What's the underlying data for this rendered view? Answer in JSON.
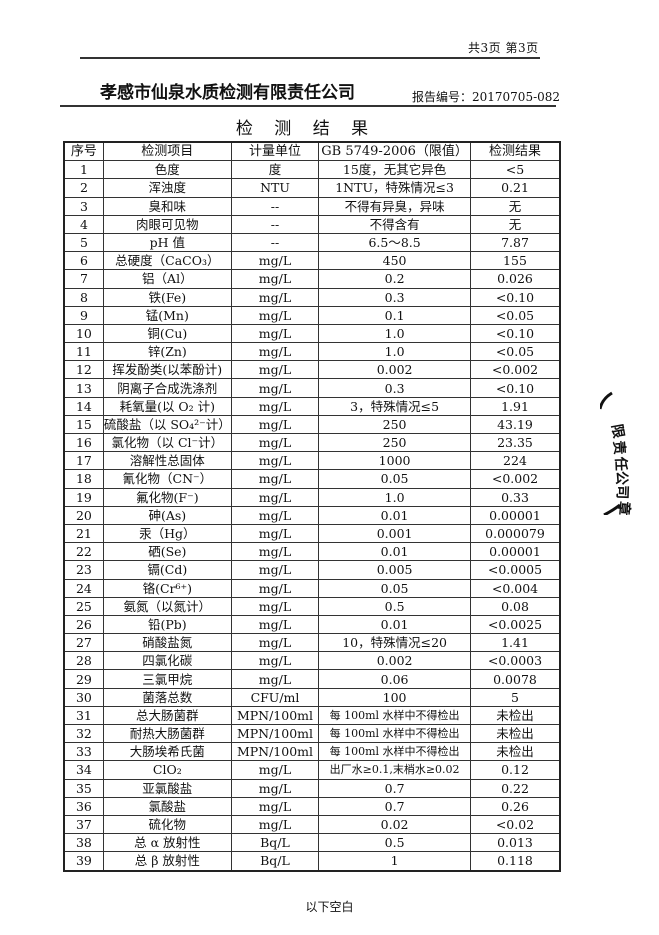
{
  "page_info": "共3页 第3页",
  "company": "孝感市仙泉水质检测有限责任公司",
  "report_no": "报告编号：20170705-082",
  "title": "检 测 结 果",
  "table": {
    "headers": [
      "序号",
      "检测项目",
      "计量单位",
      "GB 5749-2006（限值）",
      "检测结果"
    ],
    "rows": [
      [
        "1",
        "色度",
        "度",
        "15度，无其它异色",
        "<5"
      ],
      [
        "2",
        "浑浊度",
        "NTU",
        "1NTU，特殊情况≤3",
        "0.21"
      ],
      [
        "3",
        "臭和味",
        "--",
        "不得有异臭，异味",
        "无"
      ],
      [
        "4",
        "肉眼可见物",
        "--",
        "不得含有",
        "无"
      ],
      [
        "5",
        "pH 值",
        "--",
        "6.5～8.5",
        "7.87"
      ],
      [
        "6",
        "总硬度（CaCO₃）",
        "mg/L",
        "450",
        "155"
      ],
      [
        "7",
        "铝（Al）",
        "mg/L",
        "0.2",
        "0.026"
      ],
      [
        "8",
        "铁(Fe)",
        "mg/L",
        "0.3",
        "<0.10"
      ],
      [
        "9",
        "锰(Mn)",
        "mg/L",
        "0.1",
        "<0.05"
      ],
      [
        "10",
        "铜(Cu)",
        "mg/L",
        "1.0",
        "<0.10"
      ],
      [
        "11",
        "锌(Zn)",
        "mg/L",
        "1.0",
        "<0.05"
      ],
      [
        "12",
        "挥发酚类(以苯酚计)",
        "mg/L",
        "0.002",
        "<0.002"
      ],
      [
        "13",
        "阴离子合成洗涤剂",
        "mg/L",
        "0.3",
        "<0.10"
      ],
      [
        "14",
        "耗氧量(以 O₂ 计)",
        "mg/L",
        "3，特殊情况≤5",
        "1.91"
      ],
      [
        "15",
        "硫酸盐（以 SO₄²⁻计）",
        "mg/L",
        "250",
        "43.19"
      ],
      [
        "16",
        "氯化物（以 Cl⁻计）",
        "mg/L",
        "250",
        "23.35"
      ],
      [
        "17",
        "溶解性总固体",
        "mg/L",
        "1000",
        "224"
      ],
      [
        "18",
        "氰化物（CN⁻）",
        "mg/L",
        "0.05",
        "<0.002"
      ],
      [
        "19",
        "氟化物(F⁻)",
        "mg/L",
        "1.0",
        "0.33"
      ],
      [
        "20",
        "砷(As)",
        "mg/L",
        "0.01",
        "0.00001"
      ],
      [
        "21",
        "汞（Hg）",
        "mg/L",
        "0.001",
        "0.000079"
      ],
      [
        "22",
        "硒(Se)",
        "mg/L",
        "0.01",
        "0.00001"
      ],
      [
        "23",
        "镉(Cd)",
        "mg/L",
        "0.005",
        "<0.0005"
      ],
      [
        "24",
        "铬(Cr⁶⁺)",
        "mg/L",
        "0.05",
        "<0.004"
      ],
      [
        "25",
        "氨氮（以氮计）",
        "mg/L",
        "0.5",
        "0.08"
      ],
      [
        "26",
        "铅(Pb)",
        "mg/L",
        "0.01",
        "<0.0025"
      ],
      [
        "27",
        "硝酸盐氮",
        "mg/L",
        "10，特殊情况≤20",
        "1.41"
      ],
      [
        "28",
        "四氯化碳",
        "mg/L",
        "0.002",
        "<0.0003"
      ],
      [
        "29",
        "三氯甲烷",
        "mg/L",
        "0.06",
        "0.0078"
      ],
      [
        "30",
        "菌落总数",
        "CFU/ml",
        "100",
        "5"
      ],
      [
        "31",
        "总大肠菌群",
        "MPN/100ml",
        "每 100ml 水样中不得检出",
        "未检出"
      ],
      [
        "32",
        "耐热大肠菌群",
        "MPN/100ml",
        "每 100ml 水样中不得检出",
        "未检出"
      ],
      [
        "33",
        "大肠埃希氏菌",
        "MPN/100ml",
        "每 100ml 水样中不得检出",
        "未检出"
      ],
      [
        "34",
        "ClO₂",
        "mg/L",
        "出厂水≥0.1,末梢水≥0.02",
        "0.12"
      ],
      [
        "35",
        "亚氯酸盐",
        "mg/L",
        "0.7",
        "0.22"
      ],
      [
        "36",
        "氯酸盐",
        "mg/L",
        "0.7",
        "0.26"
      ],
      [
        "37",
        "硫化物",
        "mg/L",
        "0.02",
        "<0.02"
      ],
      [
        "38",
        "总 α 放射性",
        "Bq/L",
        "0.5",
        "0.013"
      ],
      [
        "39",
        "总 β 放射性",
        "Bq/L",
        "1",
        "0.118"
      ]
    ]
  },
  "footer_note": "以下空白",
  "stamp": {
    "text": "限责任公司 章",
    "color": "#111111"
  }
}
